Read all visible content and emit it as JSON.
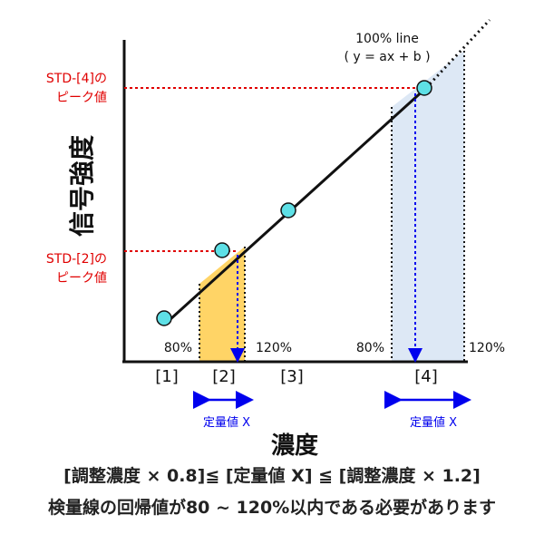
{
  "line_label": {
    "line1": "100% line",
    "line2": "( y = ax + b )"
  },
  "std4_label": {
    "line1": "STD-[4]の",
    "line2": "ピーク値"
  },
  "std2_label": {
    "line1": "STD-[2]の",
    "line2": "ピーク値"
  },
  "y_axis_title": "信号強度",
  "x_axis_title": "濃度",
  "pct_labels": {
    "band2_low": "80%",
    "band2_high": "120%",
    "band4_low": "80%",
    "band4_high": "120%"
  },
  "points": [
    "[1]",
    "[2]",
    "[3]",
    "[4]"
  ],
  "quant_label_2": "定量値 X",
  "quant_label_4": "定量値 X",
  "caption_line1": "[調整濃度 × 0.8]≦ [定量値 X] ≦ [調整濃度 × 1.2]",
  "caption_line2": "検量線の回帰値が80 ~ 120%以内である必要があります",
  "colors": {
    "axis": "#111111",
    "line": "#111111",
    "marker": "#5ee0e6",
    "red_guide": "#e00000",
    "blue_arrow": "#0000ee",
    "band2_fill": "#ffd466",
    "band4_fill": "#dde8f5"
  }
}
